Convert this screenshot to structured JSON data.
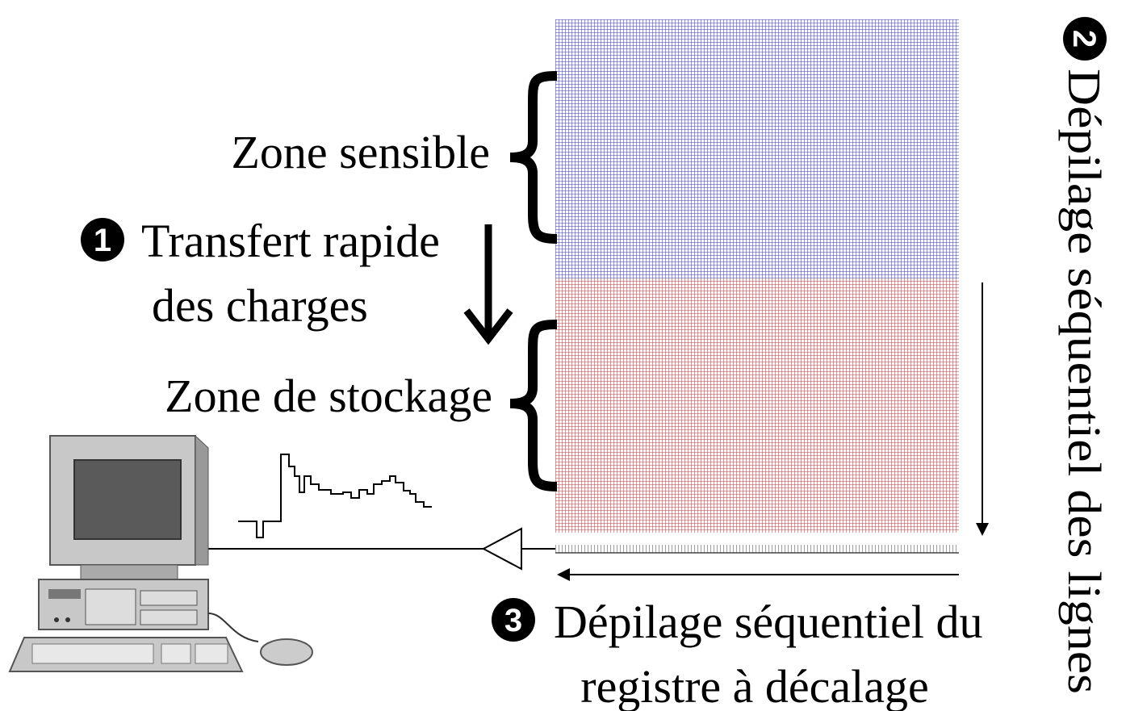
{
  "labels": {
    "sensitive_zone": "Zone sensible",
    "step1_number": "1",
    "step1_line1": "Transfert rapide",
    "step1_line2": "des charges",
    "storage_zone": "Zone de stockage",
    "step2_number": "2",
    "step2_text": "Dépilage séquentiel des lignes",
    "step3_number": "3",
    "step3_line1": "Dépilage séquentiel du",
    "step3_line2": "registre à décalage"
  }
}
